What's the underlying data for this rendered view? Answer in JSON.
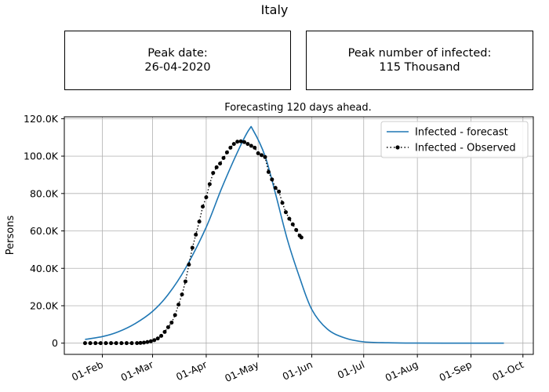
{
  "title": "Italy",
  "peak_date": {
    "label": "Peak date:",
    "value": "26-04-2020"
  },
  "peak_infected": {
    "label": "Peak number of infected:",
    "value": "115 Thousand"
  },
  "chart_data": {
    "type": "line",
    "title": "Forecasting 120 days ahead.",
    "xlabel": "",
    "ylabel": "Persons",
    "x_axis": "date",
    "xlim": [
      "2020-01-10",
      "2020-10-07"
    ],
    "ylim": [
      -6000,
      121000
    ],
    "grid": true,
    "legend_position": "top-right",
    "y_ticks": [
      {
        "value": 0,
        "label": "0"
      },
      {
        "value": 20000,
        "label": "20.0K"
      },
      {
        "value": 40000,
        "label": "40.0K"
      },
      {
        "value": 60000,
        "label": "60.0K"
      },
      {
        "value": 80000,
        "label": "80.0K"
      },
      {
        "value": 100000,
        "label": "100.0K"
      },
      {
        "value": 120000,
        "label": "120.0K"
      }
    ],
    "x_ticks": [
      {
        "value": "2020-02-01",
        "label": "01-Feb"
      },
      {
        "value": "2020-03-01",
        "label": "01-Mar"
      },
      {
        "value": "2020-04-01",
        "label": "01-Apr"
      },
      {
        "value": "2020-05-01",
        "label": "01-May"
      },
      {
        "value": "2020-06-01",
        "label": "01-Jun"
      },
      {
        "value": "2020-07-01",
        "label": "01-Jul"
      },
      {
        "value": "2020-08-01",
        "label": "01-Aug"
      },
      {
        "value": "2020-09-01",
        "label": "01-Sep"
      },
      {
        "value": "2020-10-01",
        "label": "01-Oct"
      }
    ],
    "series": [
      {
        "name": "Infected - forecast",
        "color": "#1f77b4",
        "style": "solid",
        "points": [
          [
            "2020-01-22",
            2000
          ],
          [
            "2020-02-01",
            3500
          ],
          [
            "2020-02-10",
            6000
          ],
          [
            "2020-02-20",
            10500
          ],
          [
            "2020-03-01",
            17000
          ],
          [
            "2020-03-10",
            26000
          ],
          [
            "2020-03-20",
            40000
          ],
          [
            "2020-04-01",
            62000
          ],
          [
            "2020-04-10",
            83000
          ],
          [
            "2020-04-20",
            104000
          ],
          [
            "2020-04-26",
            114500
          ],
          [
            "2020-04-28",
            114000
          ],
          [
            "2020-05-05",
            100000
          ],
          [
            "2020-05-11",
            80000
          ],
          [
            "2020-05-18",
            55000
          ],
          [
            "2020-05-25",
            35000
          ],
          [
            "2020-06-01",
            18000
          ],
          [
            "2020-06-10",
            7500
          ],
          [
            "2020-06-20",
            2800
          ],
          [
            "2020-07-01",
            700
          ],
          [
            "2020-07-15",
            200
          ],
          [
            "2020-08-01",
            50
          ],
          [
            "2020-09-01",
            0
          ],
          [
            "2020-09-20",
            0
          ]
        ]
      },
      {
        "name": "Infected - Observed",
        "color": "#000000",
        "style": "dotted-markers",
        "points": [
          [
            "2020-01-22",
            0
          ],
          [
            "2020-01-25",
            0
          ],
          [
            "2020-01-28",
            0
          ],
          [
            "2020-01-31",
            0
          ],
          [
            "2020-02-03",
            0
          ],
          [
            "2020-02-06",
            0
          ],
          [
            "2020-02-09",
            0
          ],
          [
            "2020-02-12",
            0
          ],
          [
            "2020-02-15",
            0
          ],
          [
            "2020-02-18",
            0
          ],
          [
            "2020-02-21",
            20
          ],
          [
            "2020-02-23",
            130
          ],
          [
            "2020-02-25",
            300
          ],
          [
            "2020-02-27",
            600
          ],
          [
            "2020-02-29",
            1000
          ],
          [
            "2020-03-02",
            1600
          ],
          [
            "2020-03-04",
            2500
          ],
          [
            "2020-03-06",
            3900
          ],
          [
            "2020-03-08",
            6000
          ],
          [
            "2020-03-10",
            8500
          ],
          [
            "2020-03-12",
            11000
          ],
          [
            "2020-03-14",
            15000
          ],
          [
            "2020-03-16",
            20600
          ],
          [
            "2020-03-18",
            26000
          ],
          [
            "2020-03-20",
            33000
          ],
          [
            "2020-03-22",
            42000
          ],
          [
            "2020-03-24",
            51000
          ],
          [
            "2020-03-26",
            58000
          ],
          [
            "2020-03-28",
            65000
          ],
          [
            "2020-03-30",
            73000
          ],
          [
            "2020-04-01",
            78000
          ],
          [
            "2020-04-03",
            85000
          ],
          [
            "2020-04-05",
            91000
          ],
          [
            "2020-04-07",
            94000
          ],
          [
            "2020-04-09",
            96000
          ],
          [
            "2020-04-11",
            99000
          ],
          [
            "2020-04-13",
            102000
          ],
          [
            "2020-04-15",
            104500
          ],
          [
            "2020-04-17",
            106500
          ],
          [
            "2020-04-19",
            107700
          ],
          [
            "2020-04-21",
            107900
          ],
          [
            "2020-04-23",
            107500
          ],
          [
            "2020-04-25",
            106500
          ],
          [
            "2020-04-27",
            105500
          ],
          [
            "2020-04-29",
            104500
          ],
          [
            "2020-05-01",
            101500
          ],
          [
            "2020-05-03",
            100500
          ],
          [
            "2020-05-05",
            99500
          ],
          [
            "2020-05-07",
            91500
          ],
          [
            "2020-05-09",
            87500
          ],
          [
            "2020-05-11",
            83000
          ],
          [
            "2020-05-13",
            81000
          ],
          [
            "2020-05-15",
            75000
          ],
          [
            "2020-05-17",
            70000
          ],
          [
            "2020-05-19",
            66500
          ],
          [
            "2020-05-21",
            63500
          ],
          [
            "2020-05-23",
            60500
          ],
          [
            "2020-05-25",
            57500
          ],
          [
            "2020-05-26",
            56500
          ]
        ]
      }
    ]
  }
}
